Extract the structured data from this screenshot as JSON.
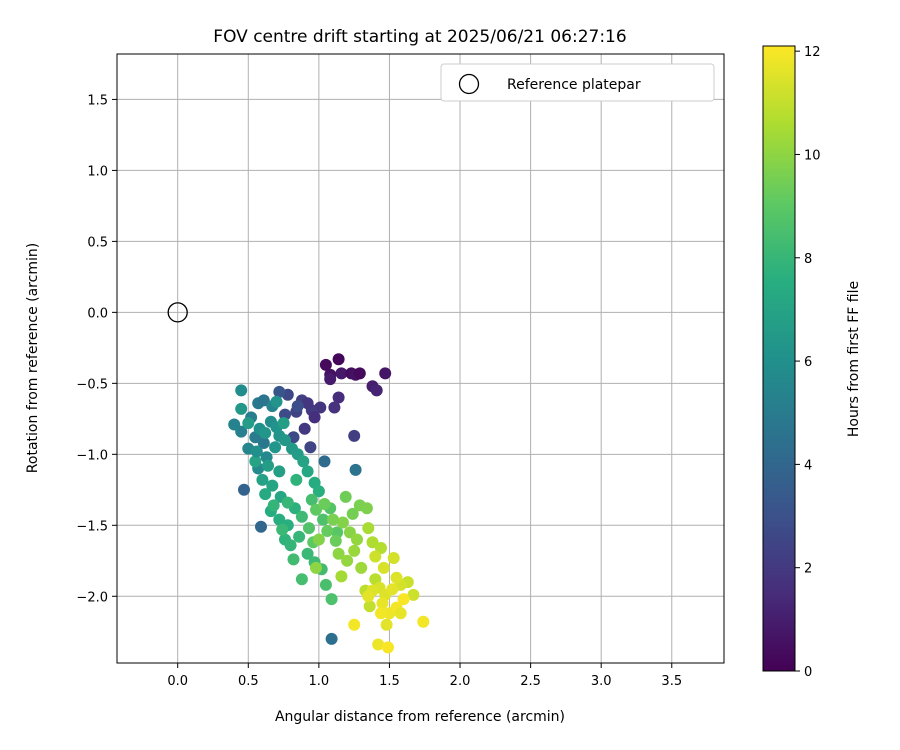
{
  "chart_data": {
    "type": "scatter",
    "title": "FOV centre drift starting at 2025/06/21 06:27:16",
    "xlabel": "Angular distance from reference (arcmin)",
    "ylabel": "Rotation from reference (arcmin)",
    "xlim": [
      -0.43,
      3.87
    ],
    "ylim": [
      -2.47,
      1.82
    ],
    "xticks": [
      0.0,
      0.5,
      1.0,
      1.5,
      2.0,
      2.5,
      3.0,
      3.5
    ],
    "xtick_labels": [
      "0.0",
      "0.5",
      "1.0",
      "1.5",
      "2.0",
      "2.5",
      "3.0",
      "3.5"
    ],
    "yticks": [
      -2.0,
      -1.5,
      -1.0,
      -0.5,
      0.0,
      0.5,
      1.0,
      1.5
    ],
    "ytick_labels": [
      "−2.0",
      "−1.5",
      "−1.0",
      "−0.5",
      "0.0",
      "0.5",
      "1.0",
      "1.5"
    ],
    "grid": true,
    "colormap": "viridis",
    "colorbar": {
      "label": "Hours from first FF file",
      "range": [
        0,
        12.1
      ],
      "ticks": [
        0,
        2,
        4,
        6,
        8,
        10,
        12
      ],
      "tick_labels": [
        "0",
        "2",
        "4",
        "6",
        "8",
        "10",
        "12"
      ]
    },
    "legend": {
      "position": "top-right",
      "entries": [
        {
          "label": "Reference platepar",
          "marker": "hollow-circle"
        }
      ]
    },
    "reference_point": {
      "x": 0.0,
      "y": 0.0
    },
    "points": [
      [
        1.05,
        -0.37,
        0.3
      ],
      [
        1.14,
        -0.33,
        0.2
      ],
      [
        1.08,
        -0.44,
        0.5
      ],
      [
        1.16,
        -0.43,
        0.8
      ],
      [
        1.23,
        -0.43,
        0.4
      ],
      [
        1.26,
        -0.44,
        0.6
      ],
      [
        1.29,
        -0.43,
        0.3
      ],
      [
        1.38,
        -0.52,
        1.0
      ],
      [
        1.41,
        -0.55,
        1.2
      ],
      [
        1.47,
        -0.43,
        0.7
      ],
      [
        1.08,
        -0.47,
        0.9
      ],
      [
        1.14,
        -0.6,
        1.5
      ],
      [
        1.01,
        -0.67,
        1.8
      ],
      [
        0.95,
        -0.69,
        2.1
      ],
      [
        0.97,
        -0.74,
        1.6
      ],
      [
        0.88,
        -0.62,
        2.3
      ],
      [
        0.78,
        -0.58,
        2.6
      ],
      [
        0.84,
        -0.7,
        2.4
      ],
      [
        0.9,
        -0.82,
        2.0
      ],
      [
        0.92,
        -0.64,
        1.9
      ],
      [
        1.11,
        -0.67,
        1.7
      ],
      [
        0.76,
        -0.72,
        2.8
      ],
      [
        1.25,
        -0.87,
        2.2
      ],
      [
        0.94,
        -0.95,
        2.5
      ],
      [
        0.72,
        -0.56,
        3.2
      ],
      [
        0.85,
        -0.66,
        2.9
      ],
      [
        0.82,
        -0.88,
        2.7
      ],
      [
        1.04,
        -1.05,
        4.2
      ],
      [
        1.26,
        -1.11,
        4.6
      ],
      [
        0.47,
        -1.25,
        3.8
      ],
      [
        0.59,
        -1.51,
        4.0
      ],
      [
        1.09,
        -2.3,
        4.4
      ],
      [
        0.61,
        -0.92,
        4.8
      ],
      [
        0.55,
        -0.88,
        5.0
      ],
      [
        0.45,
        -0.84,
        5.2
      ],
      [
        0.4,
        -0.79,
        5.3
      ],
      [
        0.52,
        -0.74,
        5.1
      ],
      [
        0.57,
        -0.64,
        4.9
      ],
      [
        0.61,
        -0.62,
        4.7
      ],
      [
        0.67,
        -0.66,
        5.4
      ],
      [
        0.5,
        -0.96,
        5.5
      ],
      [
        0.63,
        -1.02,
        5.6
      ],
      [
        0.57,
        -1.1,
        5.7
      ],
      [
        0.45,
        -0.55,
        5.8
      ],
      [
        0.66,
        -0.77,
        5.9
      ],
      [
        0.58,
        -0.82,
        6.0
      ],
      [
        0.7,
        -0.81,
        6.1
      ],
      [
        0.72,
        -0.87,
        6.2
      ],
      [
        0.69,
        -0.95,
        6.3
      ],
      [
        0.76,
        -0.9,
        6.4
      ],
      [
        0.81,
        -0.96,
        6.5
      ],
      [
        0.85,
        -1.0,
        6.6
      ],
      [
        0.64,
        -1.08,
        6.7
      ],
      [
        0.72,
        -1.12,
        6.8
      ],
      [
        0.6,
        -1.18,
        6.9
      ],
      [
        0.55,
        -1.05,
        7.0
      ],
      [
        0.67,
        -1.22,
        7.1
      ],
      [
        0.73,
        -1.3,
        7.2
      ],
      [
        0.62,
        -1.28,
        7.3
      ],
      [
        0.66,
        -1.4,
        7.4
      ],
      [
        0.72,
        -1.46,
        7.5
      ],
      [
        0.78,
        -1.5,
        7.6
      ],
      [
        0.83,
        -1.38,
        7.7
      ],
      [
        0.76,
        -1.6,
        7.8
      ],
      [
        0.8,
        -1.64,
        7.9
      ],
      [
        0.86,
        -1.58,
        8.0
      ],
      [
        0.92,
        -1.7,
        8.1
      ],
      [
        0.97,
        -1.76,
        8.2
      ],
      [
        1.02,
        -1.81,
        8.3
      ],
      [
        0.88,
        -1.88,
        8.4
      ],
      [
        1.05,
        -1.92,
        8.5
      ],
      [
        1.09,
        -2.02,
        8.6
      ],
      [
        0.93,
        -1.52,
        8.7
      ],
      [
        0.7,
        -0.63,
        6.2
      ],
      [
        0.45,
        -0.68,
        6.4
      ],
      [
        0.5,
        -0.78,
        6.6
      ],
      [
        0.75,
        -0.78,
        6.8
      ],
      [
        0.89,
        -1.05,
        7.0
      ],
      [
        0.92,
        -1.12,
        7.2
      ],
      [
        0.97,
        -1.2,
        7.4
      ],
      [
        1.0,
        -1.26,
        7.6
      ],
      [
        0.84,
        -1.18,
        7.8
      ],
      [
        0.78,
        -1.34,
        8.0
      ],
      [
        0.88,
        -1.44,
        8.2
      ],
      [
        0.95,
        -1.32,
        8.4
      ],
      [
        1.03,
        -1.46,
        8.6
      ],
      [
        1.08,
        -1.38,
        8.8
      ],
      [
        1.13,
        -1.55,
        8.9
      ],
      [
        0.96,
        -1.62,
        9.0
      ],
      [
        0.82,
        -1.74,
        8.3
      ],
      [
        0.74,
        -1.53,
        8.1
      ],
      [
        0.68,
        -1.36,
        7.9
      ],
      [
        0.56,
        -0.98,
        6.0
      ],
      [
        0.62,
        -0.85,
        6.3
      ],
      [
        0.98,
        -1.39,
        9.1
      ],
      [
        1.06,
        -1.54,
        9.2
      ],
      [
        1.12,
        -1.61,
        9.3
      ],
      [
        1.19,
        -1.3,
        9.4
      ],
      [
        1.24,
        -1.42,
        9.5
      ],
      [
        1.29,
        -1.36,
        9.6
      ],
      [
        1.34,
        -1.38,
        9.7
      ],
      [
        1.17,
        -1.48,
        9.8
      ],
      [
        1.22,
        -1.55,
        9.9
      ],
      [
        1.14,
        -1.7,
        10.0
      ],
      [
        1.2,
        -1.75,
        10.1
      ],
      [
        1.25,
        -1.68,
        10.2
      ],
      [
        1.3,
        -1.8,
        10.3
      ],
      [
        1.16,
        -1.86,
        10.4
      ],
      [
        1.35,
        -1.52,
        10.5
      ],
      [
        1.38,
        -1.62,
        10.6
      ],
      [
        1.44,
        -1.66,
        10.7
      ],
      [
        1.04,
        -1.35,
        9.3
      ],
      [
        1.1,
        -1.46,
        9.6
      ],
      [
        1.0,
        -1.6,
        9.8
      ],
      [
        0.98,
        -1.8,
        10.0
      ],
      [
        1.27,
        -1.6,
        10.1
      ],
      [
        1.4,
        -1.88,
        10.8
      ],
      [
        1.33,
        -1.96,
        10.9
      ],
      [
        1.36,
        -2.07,
        11.0
      ],
      [
        1.63,
        -1.9,
        11.1
      ],
      [
        1.67,
        -1.99,
        11.2
      ],
      [
        1.58,
        -1.92,
        11.3
      ],
      [
        1.43,
        -1.94,
        11.4
      ],
      [
        1.47,
        -1.99,
        11.5
      ],
      [
        1.52,
        -1.95,
        11.6
      ],
      [
        1.45,
        -2.05,
        11.7
      ],
      [
        1.5,
        -2.12,
        11.8
      ],
      [
        1.55,
        -2.08,
        11.9
      ],
      [
        1.6,
        -2.02,
        12.0
      ],
      [
        1.48,
        -2.2,
        11.6
      ],
      [
        1.42,
        -2.34,
        11.8
      ],
      [
        1.49,
        -2.36,
        12.0
      ],
      [
        1.25,
        -2.2,
        11.9
      ],
      [
        1.58,
        -2.12,
        11.7
      ],
      [
        1.74,
        -2.18,
        11.9
      ],
      [
        1.38,
        -1.96,
        11.5
      ],
      [
        1.53,
        -1.73,
        11.3
      ],
      [
        1.46,
        -1.8,
        11.4
      ],
      [
        1.4,
        -1.72,
        11.2
      ],
      [
        1.55,
        -1.87,
        11.5
      ],
      [
        1.35,
        -2.0,
        11.6
      ],
      [
        1.44,
        -2.12,
        11.9
      ]
    ]
  }
}
